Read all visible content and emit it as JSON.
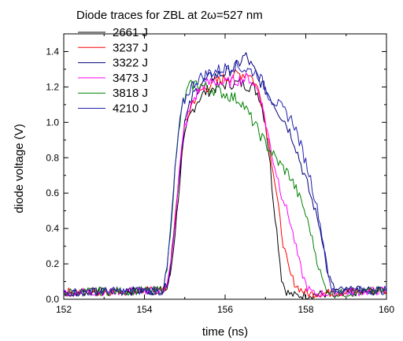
{
  "chart_data": {
    "type": "line",
    "title": "Diode traces for ZBL at 2ω=527 nm",
    "xlabel": "time (ns)",
    "ylabel": "diode voltage (V)",
    "xlim": [
      152,
      160
    ],
    "ylim": [
      0.0,
      1.5
    ],
    "x_ticks": [
      152,
      154,
      156,
      158,
      160
    ],
    "y_ticks": [
      0.0,
      0.2,
      0.4,
      0.6,
      0.8,
      1.0,
      1.2,
      1.4
    ],
    "x_tick_labels": [
      "152",
      "154",
      "156",
      "158",
      "160"
    ],
    "y_tick_labels": [
      "0.0",
      "0.2",
      "0.4",
      "0.6",
      "0.8",
      "1.0",
      "1.2",
      "1.4"
    ],
    "legend_position": "top-left",
    "grid": false,
    "series": [
      {
        "name": "2661 J",
        "color": "#000000",
        "x": [
          152,
          154.55,
          154.65,
          154.75,
          154.85,
          154.95,
          155.1,
          155.3,
          155.5,
          155.8,
          156.1,
          156.4,
          156.7,
          156.85,
          157.0,
          157.1,
          157.2,
          157.3,
          157.4,
          157.5,
          157.6,
          157.75,
          160
        ],
        "y": [
          0.04,
          0.05,
          0.15,
          0.35,
          0.6,
          0.85,
          1.02,
          1.12,
          1.17,
          1.2,
          1.22,
          1.22,
          1.2,
          1.15,
          1.0,
          0.8,
          0.55,
          0.35,
          0.12,
          0.05,
          0.03,
          0.02,
          0.05
        ]
      },
      {
        "name": "3237 J",
        "color": "#ff0000",
        "x": [
          152,
          154.5,
          154.6,
          154.7,
          154.8,
          154.9,
          155.0,
          155.2,
          155.4,
          155.7,
          156.0,
          156.3,
          156.6,
          156.9,
          157.0,
          157.15,
          157.3,
          157.45,
          157.6,
          157.75,
          157.9,
          158.05,
          160
        ],
        "y": [
          0.04,
          0.05,
          0.12,
          0.3,
          0.55,
          0.8,
          0.98,
          1.12,
          1.18,
          1.22,
          1.25,
          1.27,
          1.28,
          1.15,
          1.0,
          0.8,
          0.55,
          0.3,
          0.15,
          0.08,
          0.05,
          0.03,
          0.05
        ]
      },
      {
        "name": "3322 J",
        "color": "#00007a",
        "x": [
          152,
          154.5,
          154.6,
          154.7,
          154.8,
          154.9,
          155.0,
          155.2,
          155.4,
          155.7,
          156.0,
          156.3,
          156.5,
          156.7,
          156.9,
          157.1,
          157.3,
          157.5,
          157.7,
          157.9,
          158.1,
          158.3,
          158.45,
          158.55,
          158.65,
          158.75,
          160
        ],
        "y": [
          0.04,
          0.05,
          0.12,
          0.3,
          0.55,
          0.8,
          1.0,
          1.15,
          1.22,
          1.26,
          1.28,
          1.32,
          1.38,
          1.3,
          1.22,
          1.15,
          1.07,
          1.0,
          0.9,
          0.75,
          0.6,
          0.45,
          0.3,
          0.15,
          0.08,
          0.05,
          0.05
        ]
      },
      {
        "name": "3473 J",
        "color": "#ff00ff",
        "x": [
          152,
          154.5,
          154.6,
          154.7,
          154.8,
          154.9,
          155.0,
          155.2,
          155.4,
          155.7,
          156.0,
          156.3,
          156.6,
          156.85,
          157.0,
          157.2,
          157.4,
          157.6,
          157.75,
          157.9,
          158.05,
          158.2,
          160
        ],
        "y": [
          0.04,
          0.05,
          0.12,
          0.3,
          0.55,
          0.8,
          0.98,
          1.12,
          1.2,
          1.23,
          1.22,
          1.24,
          1.25,
          1.17,
          1.0,
          0.78,
          0.6,
          0.45,
          0.3,
          0.15,
          0.06,
          0.03,
          0.05
        ]
      },
      {
        "name": "3818 J",
        "color": "#008000",
        "x": [
          152,
          154.45,
          154.55,
          154.65,
          154.75,
          154.85,
          154.95,
          155.1,
          155.3,
          155.5,
          155.8,
          156.1,
          156.4,
          156.7,
          157.0,
          157.3,
          157.6,
          157.9,
          158.1,
          158.3,
          158.45,
          158.55,
          158.65,
          160
        ],
        "y": [
          0.04,
          0.05,
          0.15,
          0.4,
          0.7,
          0.95,
          1.1,
          1.2,
          1.22,
          1.2,
          1.18,
          1.15,
          1.12,
          1.0,
          0.88,
          0.78,
          0.7,
          0.55,
          0.4,
          0.2,
          0.08,
          0.05,
          0.03,
          0.05
        ]
      },
      {
        "name": "4210 J",
        "color": "#2020b0",
        "x": [
          152,
          154.45,
          154.55,
          154.65,
          154.75,
          154.85,
          154.95,
          155.1,
          155.3,
          155.6,
          155.9,
          156.2,
          156.5,
          156.8,
          157.1,
          157.4,
          157.7,
          157.9,
          158.1,
          158.3,
          158.45,
          158.55,
          158.65,
          160
        ],
        "y": [
          0.04,
          0.05,
          0.15,
          0.4,
          0.7,
          0.95,
          1.1,
          1.18,
          1.24,
          1.28,
          1.3,
          1.32,
          1.3,
          1.28,
          1.15,
          1.08,
          1.0,
          0.85,
          0.7,
          0.5,
          0.3,
          0.12,
          0.05,
          0.05
        ]
      }
    ]
  }
}
